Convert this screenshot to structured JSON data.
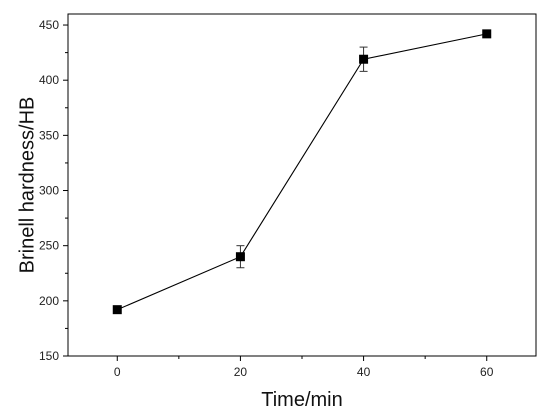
{
  "chart_data": {
    "type": "line",
    "title": "",
    "xlabel": "Time/min",
    "ylabel": "Brinell hardness/HB",
    "xlim": [
      -8,
      68
    ],
    "ylim": [
      150,
      460
    ],
    "x_ticks": [
      0,
      20,
      40,
      60
    ],
    "y_ticks": [
      150,
      200,
      250,
      300,
      350,
      400,
      450
    ],
    "grid": false,
    "legend": "none",
    "series": [
      {
        "x": [
          0,
          20,
          40,
          60
        ],
        "y": [
          192,
          240,
          419,
          442
        ],
        "error": [
          0,
          10,
          11,
          0
        ],
        "marker": "square",
        "color": "#000000"
      }
    ]
  }
}
